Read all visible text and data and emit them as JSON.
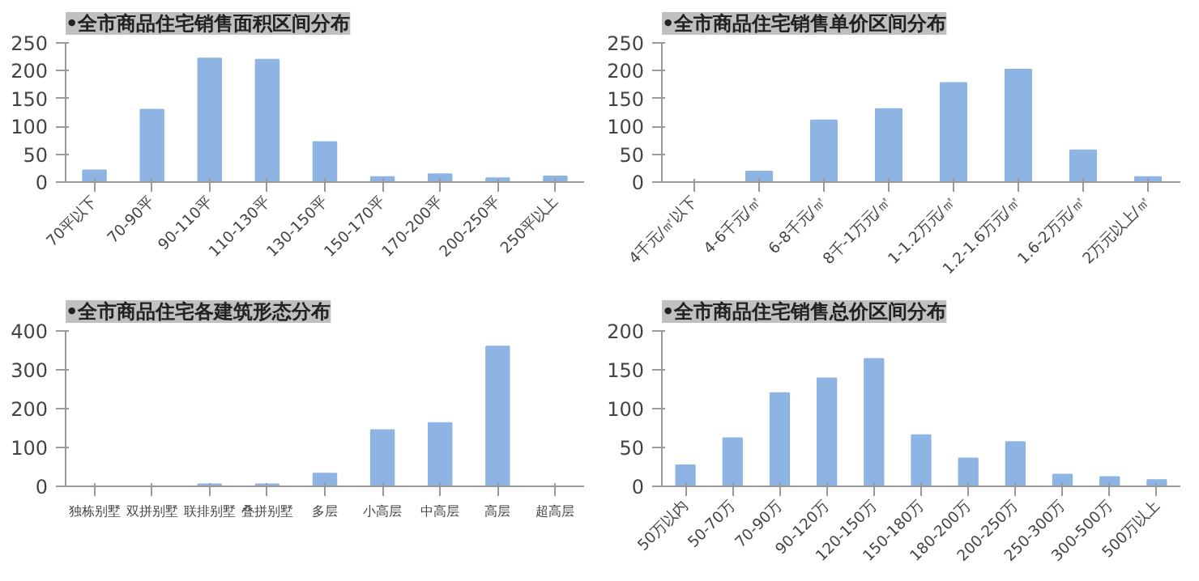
{
  "chart_data": [
    {
      "type": "bar",
      "title": "•全市商品住宅销售面积区间分布",
      "categories": [
        "70平以下",
        "70-90平",
        "90-110平",
        "110-130平",
        "130-150平",
        "150-170平",
        "170-200平",
        "200-250平",
        "250平以上"
      ],
      "values": [
        21,
        130,
        222,
        220,
        72,
        9,
        14,
        7,
        10
      ],
      "color": "#8db4e2",
      "ylim": [
        0,
        250
      ],
      "yticks": [
        0,
        50,
        100,
        150,
        200,
        250
      ],
      "grid": false
    },
    {
      "type": "bar",
      "title": "•全市商品住宅销售单价区间分布",
      "categories": [
        "4千元/㎡以下",
        "4-6千元/㎡",
        "6-8千元/㎡",
        "8千-1万元/㎡",
        "1-1.2万元/㎡",
        "1.2-1.6万元/㎡",
        "1.6-2万元/㎡",
        "2万元以上/㎡"
      ],
      "values": [
        0,
        19,
        111,
        131,
        178,
        202,
        57,
        9
      ],
      "color": "#8db4e2",
      "ylim": [
        0,
        250
      ],
      "yticks": [
        0,
        50,
        100,
        150,
        200,
        250
      ],
      "grid": false
    },
    {
      "type": "bar",
      "title": "•全市商品住宅各建筑形态分布",
      "categories": [
        "独栋别墅",
        "双拼别墅",
        "联排别墅",
        "叠拼别墅",
        "多层",
        "小高层",
        "中高层",
        "高层",
        "超高层"
      ],
      "values": [
        0,
        0,
        5,
        5,
        33,
        145,
        163,
        360,
        0
      ],
      "color": "#8db4e2",
      "ylim": [
        0,
        400
      ],
      "yticks": [
        0,
        100,
        200,
        300,
        400
      ],
      "grid": false
    },
    {
      "type": "bar",
      "title": "•全市商品住宅销售总价区间分布",
      "categories": [
        "50万以内",
        "50-70万",
        "70-90万",
        "90-120万",
        "120-150万",
        "150-180万",
        "180-200万",
        "200-250万",
        "250-300万",
        "300-500万",
        "500万以上"
      ],
      "values": [
        27,
        62,
        120,
        139,
        164,
        66,
        36,
        57,
        15,
        12,
        8
      ],
      "color": "#8db4e2",
      "ylim": [
        0,
        200
      ],
      "yticks": [
        0,
        50,
        100,
        150,
        200
      ],
      "grid": false
    }
  ]
}
